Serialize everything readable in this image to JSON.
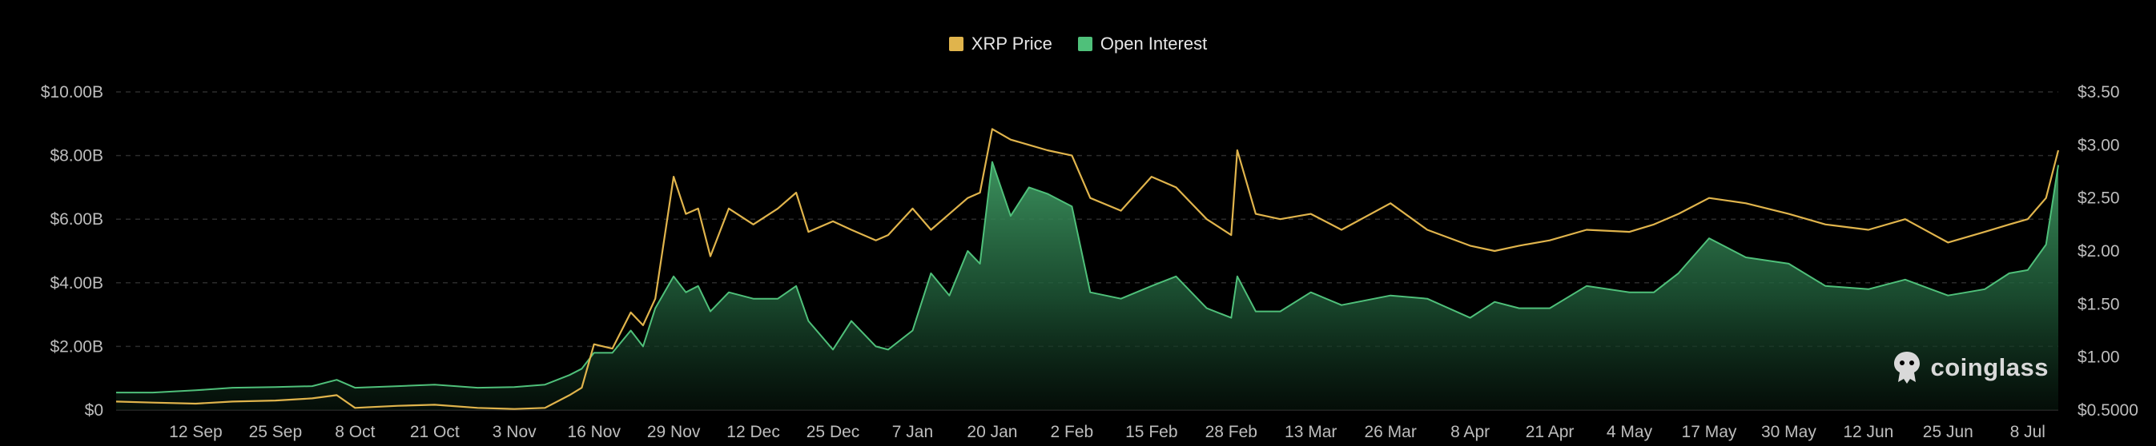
{
  "legend": {
    "items": [
      {
        "label": "XRP Price",
        "color": "#e0b44c"
      },
      {
        "label": "Open Interest",
        "color": "#4fc07a"
      }
    ]
  },
  "brand": {
    "name": "coinglass",
    "icon": "coinglass-logo-icon"
  },
  "chart_data": {
    "type": "area",
    "title": "",
    "x": [
      "2024-08-30",
      "2024-09-05",
      "2024-09-12",
      "2024-09-18",
      "2024-09-25",
      "2024-10-01",
      "2024-10-05",
      "2024-10-08",
      "2024-10-15",
      "2024-10-21",
      "2024-10-28",
      "2024-11-03",
      "2024-11-08",
      "2024-11-12",
      "2024-11-14",
      "2024-11-16",
      "2024-11-19",
      "2024-11-22",
      "2024-11-24",
      "2024-11-26",
      "2024-11-29",
      "2024-12-01",
      "2024-12-03",
      "2024-12-05",
      "2024-12-08",
      "2024-12-12",
      "2024-12-16",
      "2024-12-19",
      "2024-12-21",
      "2024-12-25",
      "2024-12-28",
      "2025-01-01",
      "2025-01-03",
      "2025-01-07",
      "2025-01-10",
      "2025-01-13",
      "2025-01-16",
      "2025-01-18",
      "2025-01-20",
      "2025-01-23",
      "2025-01-26",
      "2025-01-29",
      "2025-02-02",
      "2025-02-05",
      "2025-02-10",
      "2025-02-15",
      "2025-02-19",
      "2025-02-24",
      "2025-02-28",
      "2025-03-01",
      "2025-03-04",
      "2025-03-08",
      "2025-03-13",
      "2025-03-18",
      "2025-03-26",
      "2025-04-01",
      "2025-04-08",
      "2025-04-12",
      "2025-04-16",
      "2025-04-21",
      "2025-04-27",
      "2025-05-04",
      "2025-05-08",
      "2025-05-12",
      "2025-05-17",
      "2025-05-23",
      "2025-05-30",
      "2025-06-05",
      "2025-06-12",
      "2025-06-18",
      "2025-06-25",
      "2025-07-01",
      "2025-07-05",
      "2025-07-08",
      "2025-07-11",
      "2025-07-13"
    ],
    "series": [
      {
        "name": "Open Interest",
        "axis": "left",
        "color": "#4fc07a",
        "values": [
          0.55,
          0.55,
          0.62,
          0.7,
          0.72,
          0.75,
          0.95,
          0.7,
          0.75,
          0.8,
          0.7,
          0.72,
          0.8,
          1.1,
          1.3,
          1.8,
          1.8,
          2.5,
          2.0,
          3.2,
          4.2,
          3.7,
          3.9,
          3.1,
          3.7,
          3.5,
          3.5,
          3.9,
          2.8,
          1.9,
          2.8,
          2.0,
          1.9,
          2.5,
          4.3,
          3.6,
          5.0,
          4.6,
          7.8,
          6.1,
          7.0,
          6.8,
          6.4,
          3.7,
          3.5,
          3.9,
          4.2,
          3.2,
          2.9,
          4.2,
          3.1,
          3.1,
          3.7,
          3.3,
          3.6,
          3.5,
          2.9,
          3.4,
          3.2,
          3.2,
          3.9,
          3.7,
          3.7,
          4.3,
          5.4,
          4.8,
          4.6,
          3.9,
          3.8,
          4.1,
          3.6,
          3.8,
          4.3,
          4.4,
          5.2,
          7.7
        ]
      },
      {
        "name": "XRP Price",
        "axis": "right",
        "color": "#e0b44c",
        "values": [
          0.58,
          0.57,
          0.56,
          0.58,
          0.59,
          0.61,
          0.64,
          0.52,
          0.54,
          0.55,
          0.52,
          0.51,
          0.52,
          0.64,
          0.71,
          1.12,
          1.08,
          1.42,
          1.3,
          1.55,
          2.7,
          2.35,
          2.4,
          1.95,
          2.4,
          2.25,
          2.4,
          2.55,
          2.18,
          2.28,
          2.2,
          2.1,
          2.15,
          2.4,
          2.2,
          2.35,
          2.5,
          2.55,
          3.15,
          3.05,
          3.0,
          2.95,
          2.9,
          2.5,
          2.38,
          2.7,
          2.6,
          2.3,
          2.15,
          2.95,
          2.35,
          2.3,
          2.35,
          2.2,
          2.45,
          2.2,
          2.05,
          2.0,
          2.05,
          2.1,
          2.2,
          2.18,
          2.25,
          2.35,
          2.5,
          2.45,
          2.35,
          2.25,
          2.2,
          2.3,
          2.08,
          2.18,
          2.25,
          2.3,
          2.5,
          2.95
        ]
      }
    ],
    "y_left": {
      "ticks": [
        "$0",
        "$2.00B",
        "$4.00B",
        "$6.00B",
        "$8.00B",
        "$10.00B"
      ],
      "range": [
        0,
        10
      ],
      "unit": "B USD"
    },
    "y_right": {
      "ticks": [
        "$0.5000",
        "$1.00",
        "$1.50",
        "$2.00",
        "$2.50",
        "$3.00",
        "$3.50"
      ],
      "range": [
        0.5,
        3.5
      ],
      "unit": "USD"
    },
    "x_ticks": [
      {
        "label": "12 Sep",
        "date": "2024-09-12"
      },
      {
        "label": "25 Sep",
        "date": "2024-09-25"
      },
      {
        "label": "8 Oct",
        "date": "2024-10-08"
      },
      {
        "label": "21 Oct",
        "date": "2024-10-21"
      },
      {
        "label": "3 Nov",
        "date": "2024-11-03"
      },
      {
        "label": "16 Nov",
        "date": "2024-11-16"
      },
      {
        "label": "29 Nov",
        "date": "2024-11-29"
      },
      {
        "label": "12 Dec",
        "date": "2024-12-12"
      },
      {
        "label": "25 Dec",
        "date": "2024-12-25"
      },
      {
        "label": "7 Jan",
        "date": "2025-01-07"
      },
      {
        "label": "20 Jan",
        "date": "2025-01-20"
      },
      {
        "label": "2 Feb",
        "date": "2025-02-02"
      },
      {
        "label": "15 Feb",
        "date": "2025-02-15"
      },
      {
        "label": "28 Feb",
        "date": "2025-02-28"
      },
      {
        "label": "13 Mar",
        "date": "2025-03-13"
      },
      {
        "label": "26 Mar",
        "date": "2025-03-26"
      },
      {
        "label": "8 Apr",
        "date": "2025-04-08"
      },
      {
        "label": "21 Apr",
        "date": "2025-04-21"
      },
      {
        "label": "4 May",
        "date": "2025-05-04"
      },
      {
        "label": "17 May",
        "date": "2025-05-17"
      },
      {
        "label": "30 May",
        "date": "2025-05-30"
      },
      {
        "label": "12 Jun",
        "date": "2025-06-12"
      },
      {
        "label": "25 Jun",
        "date": "2025-06-25"
      },
      {
        "label": "8 Jul",
        "date": "2025-07-08"
      }
    ],
    "x_range": [
      "2024-08-30",
      "2025-07-13"
    ],
    "grid": true,
    "legend": "top-center"
  }
}
